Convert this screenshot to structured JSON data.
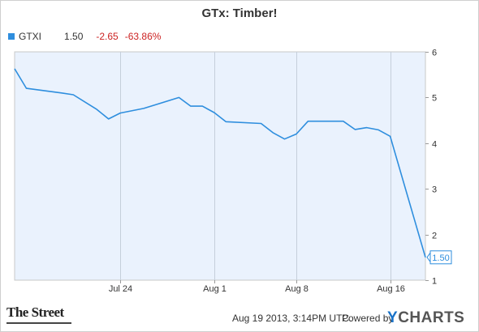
{
  "header": {
    "title": "GTx: Timber!"
  },
  "legend": {
    "ticker": "GTXI",
    "price": "1.50",
    "change": "-2.65",
    "change_pct": "-63.86%",
    "color": "#2e8ede",
    "change_color": "#cc2222"
  },
  "footer": {
    "timestamp": "Aug 19 2013, 3:14PM UTC.",
    "powered_by": "Powered by",
    "brand_left": "The Street",
    "brand_right_y": "Y",
    "brand_right_rest": "CHARTS"
  },
  "chart_data": {
    "type": "line",
    "title": "GTx: Timber!",
    "xlabel": "",
    "ylabel": "",
    "x_range": [
      "2013-07-15",
      "2013-08-19"
    ],
    "ylim": [
      1,
      6
    ],
    "y_ticks": [
      1,
      2,
      3,
      4,
      5,
      6
    ],
    "x_ticks": [
      {
        "date": "2013-07-24",
        "label": "Jul 24"
      },
      {
        "date": "2013-08-01",
        "label": "Aug 1"
      },
      {
        "date": "2013-08-08",
        "label": "Aug 8"
      },
      {
        "date": "2013-08-16",
        "label": "Aug 16"
      }
    ],
    "grid": "vertical",
    "y_axis_side": "right",
    "background_color": "#eaf2fd",
    "line_color": "#2e8ede",
    "last_value_label": "1.50",
    "series": [
      {
        "name": "GTXI",
        "points": [
          {
            "date": "2013-07-15",
            "value": 5.63
          },
          {
            "date": "2013-07-16",
            "value": 5.2
          },
          {
            "date": "2013-07-19",
            "value": 5.1
          },
          {
            "date": "2013-07-20",
            "value": 5.06
          },
          {
            "date": "2013-07-22",
            "value": 4.74
          },
          {
            "date": "2013-07-23",
            "value": 4.53
          },
          {
            "date": "2013-07-24",
            "value": 4.66
          },
          {
            "date": "2013-07-26",
            "value": 4.76
          },
          {
            "date": "2013-07-29",
            "value": 5.0
          },
          {
            "date": "2013-07-30",
            "value": 4.81
          },
          {
            "date": "2013-07-31",
            "value": 4.81
          },
          {
            "date": "2013-08-01",
            "value": 4.67
          },
          {
            "date": "2013-08-02",
            "value": 4.47
          },
          {
            "date": "2013-08-05",
            "value": 4.43
          },
          {
            "date": "2013-08-06",
            "value": 4.23
          },
          {
            "date": "2013-08-07",
            "value": 4.09
          },
          {
            "date": "2013-08-08",
            "value": 4.2
          },
          {
            "date": "2013-08-09",
            "value": 4.48
          },
          {
            "date": "2013-08-12",
            "value": 4.48
          },
          {
            "date": "2013-08-13",
            "value": 4.3
          },
          {
            "date": "2013-08-14",
            "value": 4.34
          },
          {
            "date": "2013-08-15",
            "value": 4.29
          },
          {
            "date": "2013-08-16",
            "value": 4.15
          },
          {
            "date": "2013-08-19",
            "value": 1.5
          }
        ]
      }
    ]
  }
}
